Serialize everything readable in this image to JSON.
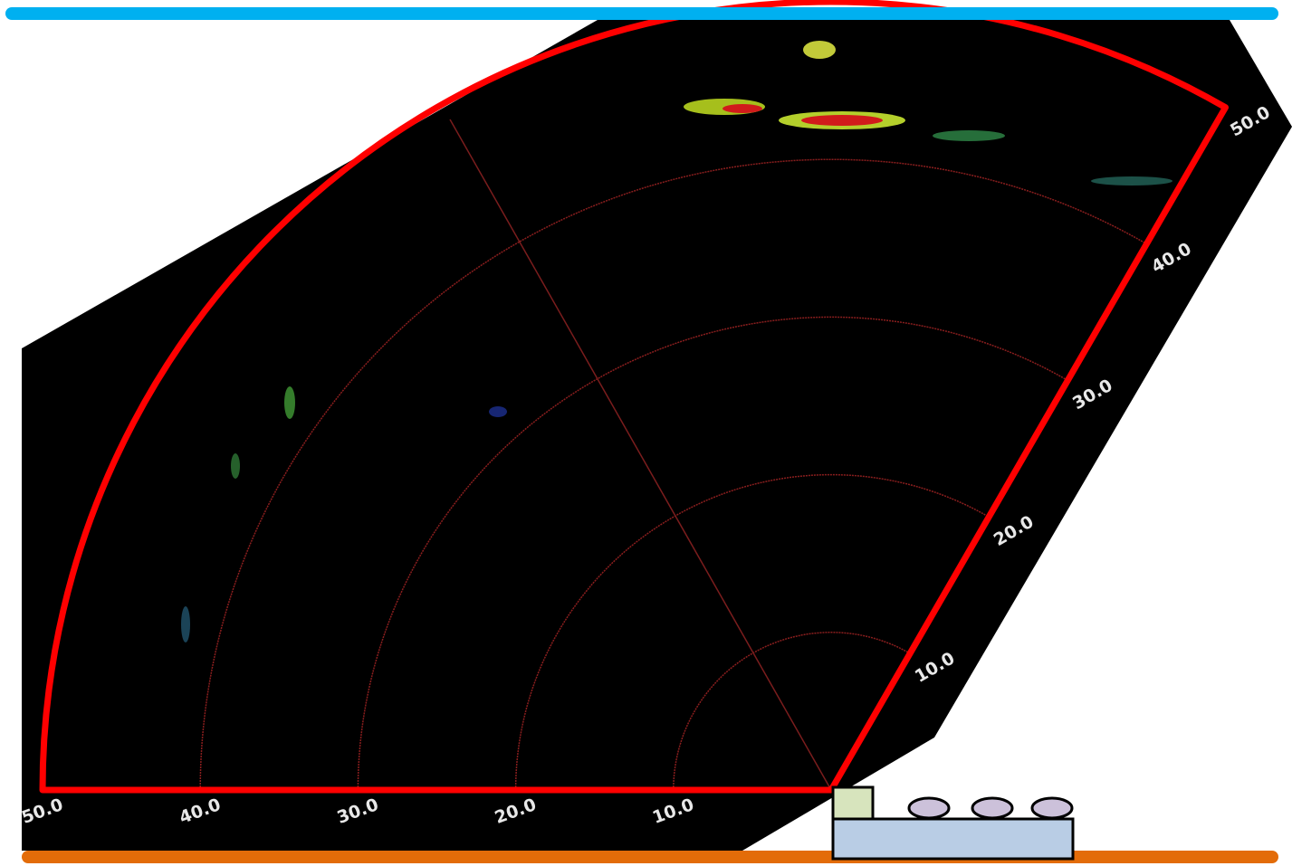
{
  "range_labels": {
    "bottom": [
      "10.0",
      "20.0",
      "30.0",
      "40.0",
      "50.0"
    ],
    "right": [
      "10.0",
      "20.0",
      "30.0",
      "40.0",
      "50.0"
    ]
  }
}
